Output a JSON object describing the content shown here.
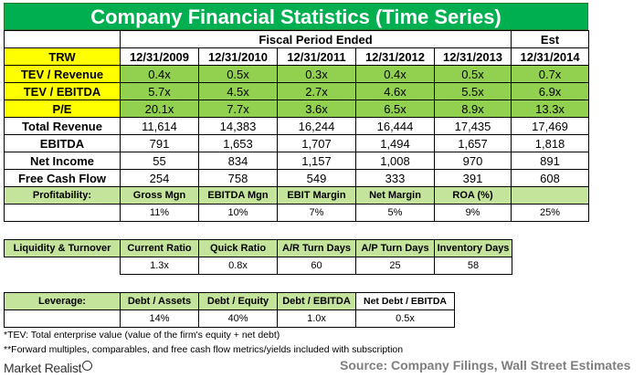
{
  "title": "Company Financial Statistics (Time Series)",
  "fiscal_header": "Fiscal Period Ended",
  "est_header": "Est",
  "ticker": "TRW",
  "dates": [
    "12/31/2009",
    "12/31/2010",
    "12/31/2011",
    "12/31/2012",
    "12/31/2013",
    "12/31/2014"
  ],
  "rows": [
    {
      "label": "TEV / Revenue",
      "values": [
        "0.4x",
        "0.5x",
        "0.3x",
        "0.4x",
        "0.5x",
        "0.7x"
      ]
    },
    {
      "label": "TEV / EBITDA",
      "values": [
        "5.7x",
        "4.5x",
        "2.7x",
        "4.6x",
        "5.5x",
        "6.9x"
      ]
    },
    {
      "label": "P/E",
      "values": [
        "20.1x",
        "7.7x",
        "3.6x",
        "6.5x",
        "8.9x",
        "13.3x"
      ]
    },
    {
      "label": "Total Revenue",
      "values": [
        "11,614",
        "14,383",
        "16,244",
        "16,444",
        "17,435",
        "17,469"
      ]
    },
    {
      "label": "EBITDA",
      "values": [
        "791",
        "1,653",
        "1,707",
        "1,494",
        "1,657",
        "1,818"
      ]
    },
    {
      "label": "Net Income",
      "values": [
        "55",
        "834",
        "1,157",
        "1,008",
        "970",
        "891"
      ]
    },
    {
      "label": "Free Cash Flow",
      "values": [
        "254",
        "758",
        "549",
        "333",
        "391",
        "608"
      ]
    }
  ],
  "profitability": {
    "label": "Profitability:",
    "headers": [
      "Gross Mgn",
      "EBITDA Mgn",
      "EBIT Margin",
      "Net Margin",
      "ROA (%)",
      ""
    ],
    "values": [
      "11%",
      "10%",
      "7%",
      "5%",
      "9%",
      "25%"
    ]
  },
  "liquidity": {
    "label": "Liquidity & Turnover",
    "headers": [
      "Current Ratio",
      "Quick Ratio",
      "A/R Turn Days",
      "A/P Turn Days",
      "Inventory Days"
    ],
    "values": [
      "1.3x",
      "0.8x",
      "60",
      "25",
      "58"
    ]
  },
  "leverage": {
    "label": "Leverage:",
    "headers": [
      "Debt / Assets",
      "Debt / Equity",
      "Debt / EBITDA",
      "Net Debt / EBITDA"
    ],
    "values": [
      "14%",
      "40%",
      "1.0x",
      "0.5x"
    ]
  },
  "notes": [
    "*TEV: Total enterprise value (value of the firm's equity + net debt)",
    "**Forward multiples, comparables, and free cash flow metrics/yields included with subscription"
  ],
  "logo_text": "Market Realist",
  "source": "Source: Company Filings, Wall Street Estimates",
  "colors": {
    "title_bg": "#00b050",
    "header_bg": "#ffff00",
    "ratio_bg": "#92d050",
    "source_text": "#7f7f7f"
  }
}
